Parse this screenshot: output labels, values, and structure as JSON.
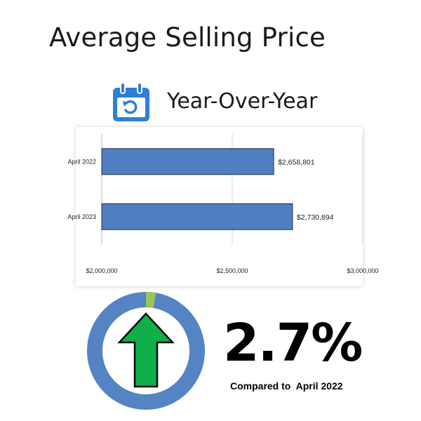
{
  "title": "Average Selling Price",
  "subtitle": "Year-Over-Year",
  "icon": "calendar-refresh-icon",
  "colors": {
    "bar": "#4f7fc0",
    "bar_border": "#1f2f4a",
    "ring": "#5584c4",
    "ring_accent": "#9bc45a",
    "arrow": "#0fb04a",
    "icon": "#2f7fd4"
  },
  "chart_data": {
    "type": "bar",
    "orientation": "horizontal",
    "categories": [
      "April 2022",
      "April 2023"
    ],
    "values": [
      2658801,
      2730894
    ],
    "value_labels": [
      "$2,658,801",
      "$2,730,894"
    ],
    "xlim": [
      2000000,
      3000000
    ],
    "xticks": [
      2000000,
      2500000,
      3000000
    ],
    "xtick_labels": [
      "$2,000,000",
      "$2,500,000",
      "$3,000,000"
    ],
    "grid": true,
    "legend": "none",
    "xlabel": "",
    "ylabel": ""
  },
  "change": {
    "value": "2.7%",
    "fraction": 0.027,
    "direction": "up",
    "caption": "Compared to  April 2022"
  }
}
